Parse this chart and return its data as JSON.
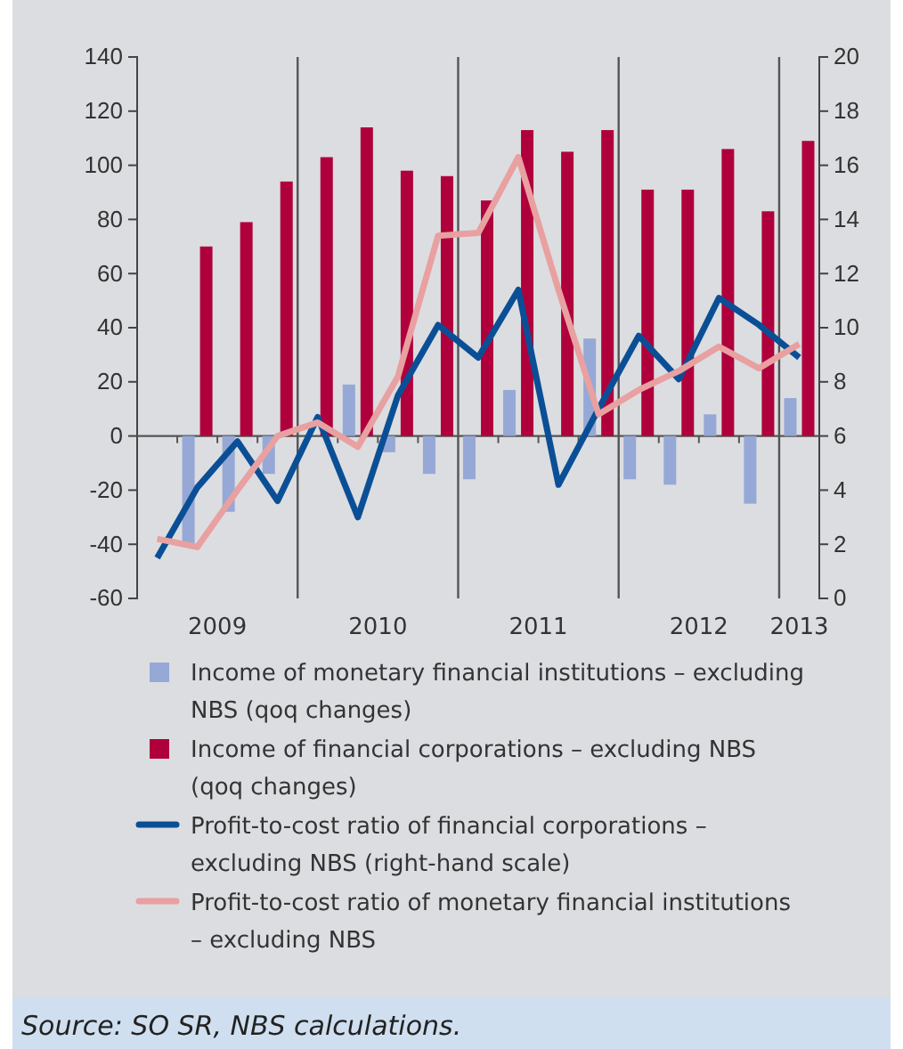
{
  "chart_data": {
    "type": "bar",
    "x": [
      2009.125,
      2009.375,
      2009.625,
      2009.875,
      2010.125,
      2010.375,
      2010.625,
      2010.875,
      2011.125,
      2011.375,
      2011.625,
      2011.875,
      2012.125,
      2012.375,
      2012.625,
      2012.875,
      2013.125
    ],
    "xlim": [
      2009,
      2013.25
    ],
    "xticks": [
      {
        "value": 2009.5,
        "label": "2009"
      },
      {
        "value": 2010.5,
        "label": "2010"
      },
      {
        "value": 2011.5,
        "label": "2011"
      },
      {
        "value": 2012.5,
        "label": "2012"
      },
      {
        "value": 2013.125,
        "label": "2013"
      },
      {
        "value": 2009.25,
        "label": null
      },
      {
        "value": 2009.5,
        "label": null
      },
      {
        "value": 2009.75,
        "label": null
      },
      {
        "value": 2010.25,
        "label": null
      },
      {
        "value": 2010.5,
        "label": null
      },
      {
        "value": 2010.75,
        "label": null
      },
      {
        "value": 2011.25,
        "label": null
      },
      {
        "value": 2011.5,
        "label": null
      },
      {
        "value": 2011.75,
        "label": null
      },
      {
        "value": 2012.25,
        "label": null
      },
      {
        "value": 2012.5,
        "label": null
      },
      {
        "value": 2012.75,
        "label": null
      }
    ],
    "ylim": [
      -60,
      140
    ],
    "yticks": [
      -60,
      -40,
      -20,
      0,
      20,
      40,
      60,
      80,
      100,
      120,
      140
    ],
    "y2lim": [
      0,
      20
    ],
    "y2ticks": [
      0,
      2,
      4,
      6,
      8,
      10,
      12,
      14,
      16,
      18,
      20
    ],
    "ref_lines": [
      {
        "axis": "x",
        "value": 2010,
        "color": "#555555"
      },
      {
        "axis": "x",
        "value": 2011,
        "color": "#555555"
      },
      {
        "axis": "x",
        "value": 2012,
        "color": "#555555"
      },
      {
        "axis": "x",
        "value": 2013,
        "color": "#555555"
      }
    ],
    "legend": "bottom",
    "series": [
      {
        "name": "Income of monetary financial institutions – excluding NBS (qoq changes)",
        "color": "#96a8d6",
        "values": [
          null,
          -40,
          -28,
          -14,
          null,
          19,
          -6,
          -14,
          -16,
          17,
          null,
          36,
          -16,
          -18,
          8,
          -25,
          14
        ]
      },
      {
        "name": "Income of financial corporations – excluding NBS (qoq changes)",
        "color": "#b0003c",
        "values": [
          null,
          70,
          79,
          94,
          103,
          114,
          98,
          96,
          87,
          113,
          105,
          113,
          91,
          91,
          106,
          83,
          109
        ]
      },
      {
        "type": "line",
        "axis": "y2",
        "name": "Profit-to-cost ratio of financial corporations – excluding NBS (right-hand scale)",
        "color": "#0a4f96",
        "values": [
          1.5,
          4.1,
          5.8,
          3.6,
          6.7,
          3.0,
          7.5,
          10.1,
          8.9,
          11.4,
          4.2,
          7.0,
          9.7,
          8.1,
          11.1,
          10.1,
          8.9
        ]
      },
      {
        "type": "line",
        "axis": "y2",
        "name": "Profit-to-cost ratio of monetary financial institutions – excluding NBS",
        "color": "#e8a0a0",
        "values": [
          2.2,
          1.9,
          4.0,
          6.0,
          6.5,
          5.6,
          8.2,
          13.4,
          13.5,
          16.3,
          11.4,
          6.8,
          7.7,
          8.4,
          9.3,
          8.5,
          9.4
        ]
      }
    ],
    "annotations": [
      "Source: SO SR, NBS calculations."
    ]
  }
}
